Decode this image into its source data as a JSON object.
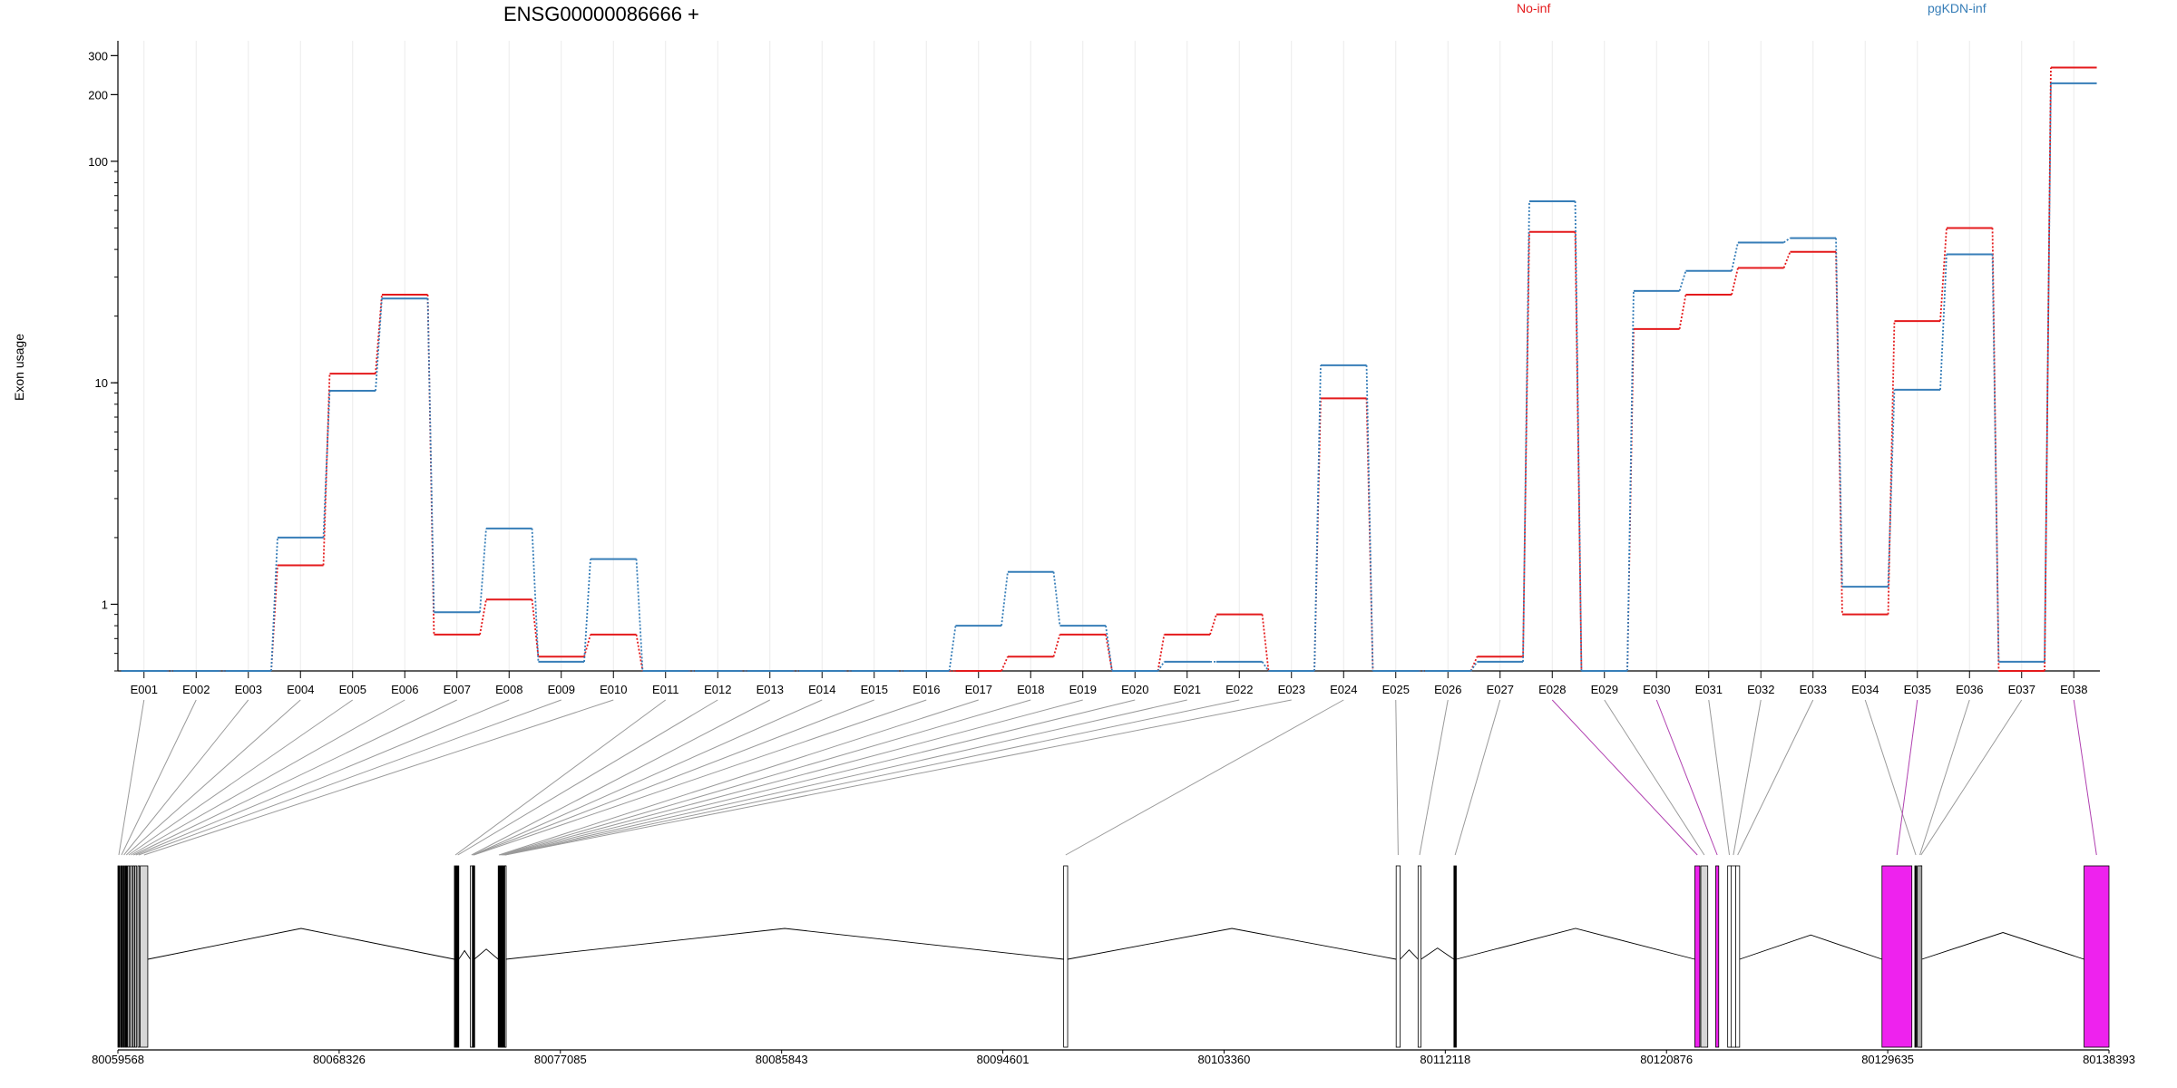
{
  "chart_data": {
    "type": "line",
    "title": "ENSG00000086666 +",
    "ylabel": "Exon usage",
    "xlabel": "",
    "yscale": "log",
    "ylim": [
      0.5,
      350
    ],
    "yticks": [
      1,
      10,
      100,
      200,
      300
    ],
    "ytick_labels": [
      "1",
      "10",
      "100",
      "200",
      "300"
    ],
    "grid": "vertical",
    "legend": "top",
    "categories": [
      "E001",
      "E002",
      "E003",
      "E004",
      "E005",
      "E006",
      "E007",
      "E008",
      "E009",
      "E010",
      "E011",
      "E012",
      "E013",
      "E014",
      "E015",
      "E016",
      "E017",
      "E018",
      "E019",
      "E020",
      "E021",
      "E022",
      "E023",
      "E024",
      "E025",
      "E026",
      "E027",
      "E028",
      "E029",
      "E030",
      "E031",
      "E032",
      "E033",
      "E034",
      "E035",
      "E036",
      "E037",
      "E038"
    ],
    "series": [
      {
        "name": "No-inf",
        "color": "#e41a1c",
        "values": [
          0.5,
          0.5,
          0.5,
          1.5,
          11,
          25,
          0.73,
          1.05,
          0.58,
          0.73,
          0.5,
          0.5,
          0.5,
          0.5,
          0.5,
          0.5,
          0.5,
          0.58,
          0.73,
          0.5,
          0.73,
          0.9,
          0.5,
          8.5,
          0.5,
          0.5,
          0.58,
          48,
          0.5,
          17.5,
          25,
          33,
          39,
          0.9,
          19,
          50,
          0.5,
          265
        ]
      },
      {
        "name": "pgKDN-inf",
        "color": "#377eb8",
        "values": [
          0.5,
          0.5,
          0.5,
          2.0,
          9.2,
          24,
          0.92,
          2.2,
          0.55,
          1.6,
          0.5,
          0.5,
          0.5,
          0.5,
          0.5,
          0.5,
          0.8,
          1.4,
          0.8,
          0.5,
          0.55,
          0.55,
          0.5,
          12,
          0.5,
          0.5,
          0.55,
          66,
          0.5,
          26,
          32,
          43,
          45,
          1.2,
          9.3,
          38,
          0.55,
          225
        ]
      }
    ],
    "genomic_axis": {
      "ticks": [
        "80059568",
        "80068326",
        "80077085",
        "80085843",
        "80094601",
        "80103360",
        "80112118",
        "80120876",
        "80129635",
        "80138393"
      ]
    },
    "gene_model": {
      "highlight_color": "#ee22ee",
      "highlighted_exons": [
        "E028",
        "E030",
        "E035",
        "E038"
      ]
    }
  }
}
